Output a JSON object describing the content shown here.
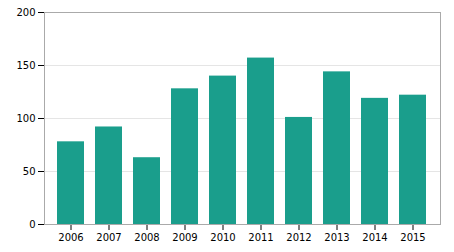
{
  "chart_data": {
    "type": "bar",
    "categories": [
      "2006",
      "2007",
      "2008",
      "2009",
      "2010",
      "2011",
      "2012",
      "2013",
      "2014",
      "2015"
    ],
    "values": [
      78,
      92,
      63,
      128,
      140,
      157,
      101,
      144,
      119,
      122
    ],
    "color": "#1a9e8c",
    "ylim": [
      0,
      200
    ],
    "yticks": [
      0,
      50,
      100,
      150,
      200
    ],
    "grid": true
  }
}
